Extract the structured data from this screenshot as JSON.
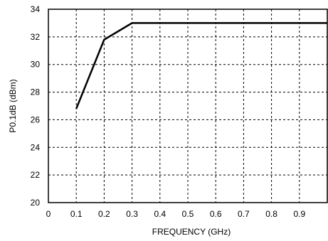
{
  "chart_data": {
    "type": "line",
    "xlabel": "FREQUENCY (GHz)",
    "ylabel": "P0.1dB (dBm)",
    "xlim": [
      0,
      1.0
    ],
    "ylim": [
      20,
      34
    ],
    "x_ticks": [
      0,
      0.1,
      0.2,
      0.3,
      0.4,
      0.5,
      0.6,
      0.7,
      0.8,
      0.9
    ],
    "x_tick_labels": [
      "0",
      "0.1",
      "0.2",
      "0.3",
      "0.4",
      "0.5",
      "0.6",
      "0.7",
      "0.8",
      "0.9"
    ],
    "y_ticks": [
      20,
      22,
      24,
      26,
      28,
      30,
      32,
      34
    ],
    "y_tick_labels": [
      "20",
      "22",
      "24",
      "26",
      "28",
      "30",
      "32",
      "34"
    ],
    "grid": "dashed",
    "series": [
      {
        "x": [
          0.1,
          0.2,
          0.3,
          1.0
        ],
        "y": [
          26.8,
          31.8,
          33.0,
          33.0
        ]
      }
    ]
  }
}
